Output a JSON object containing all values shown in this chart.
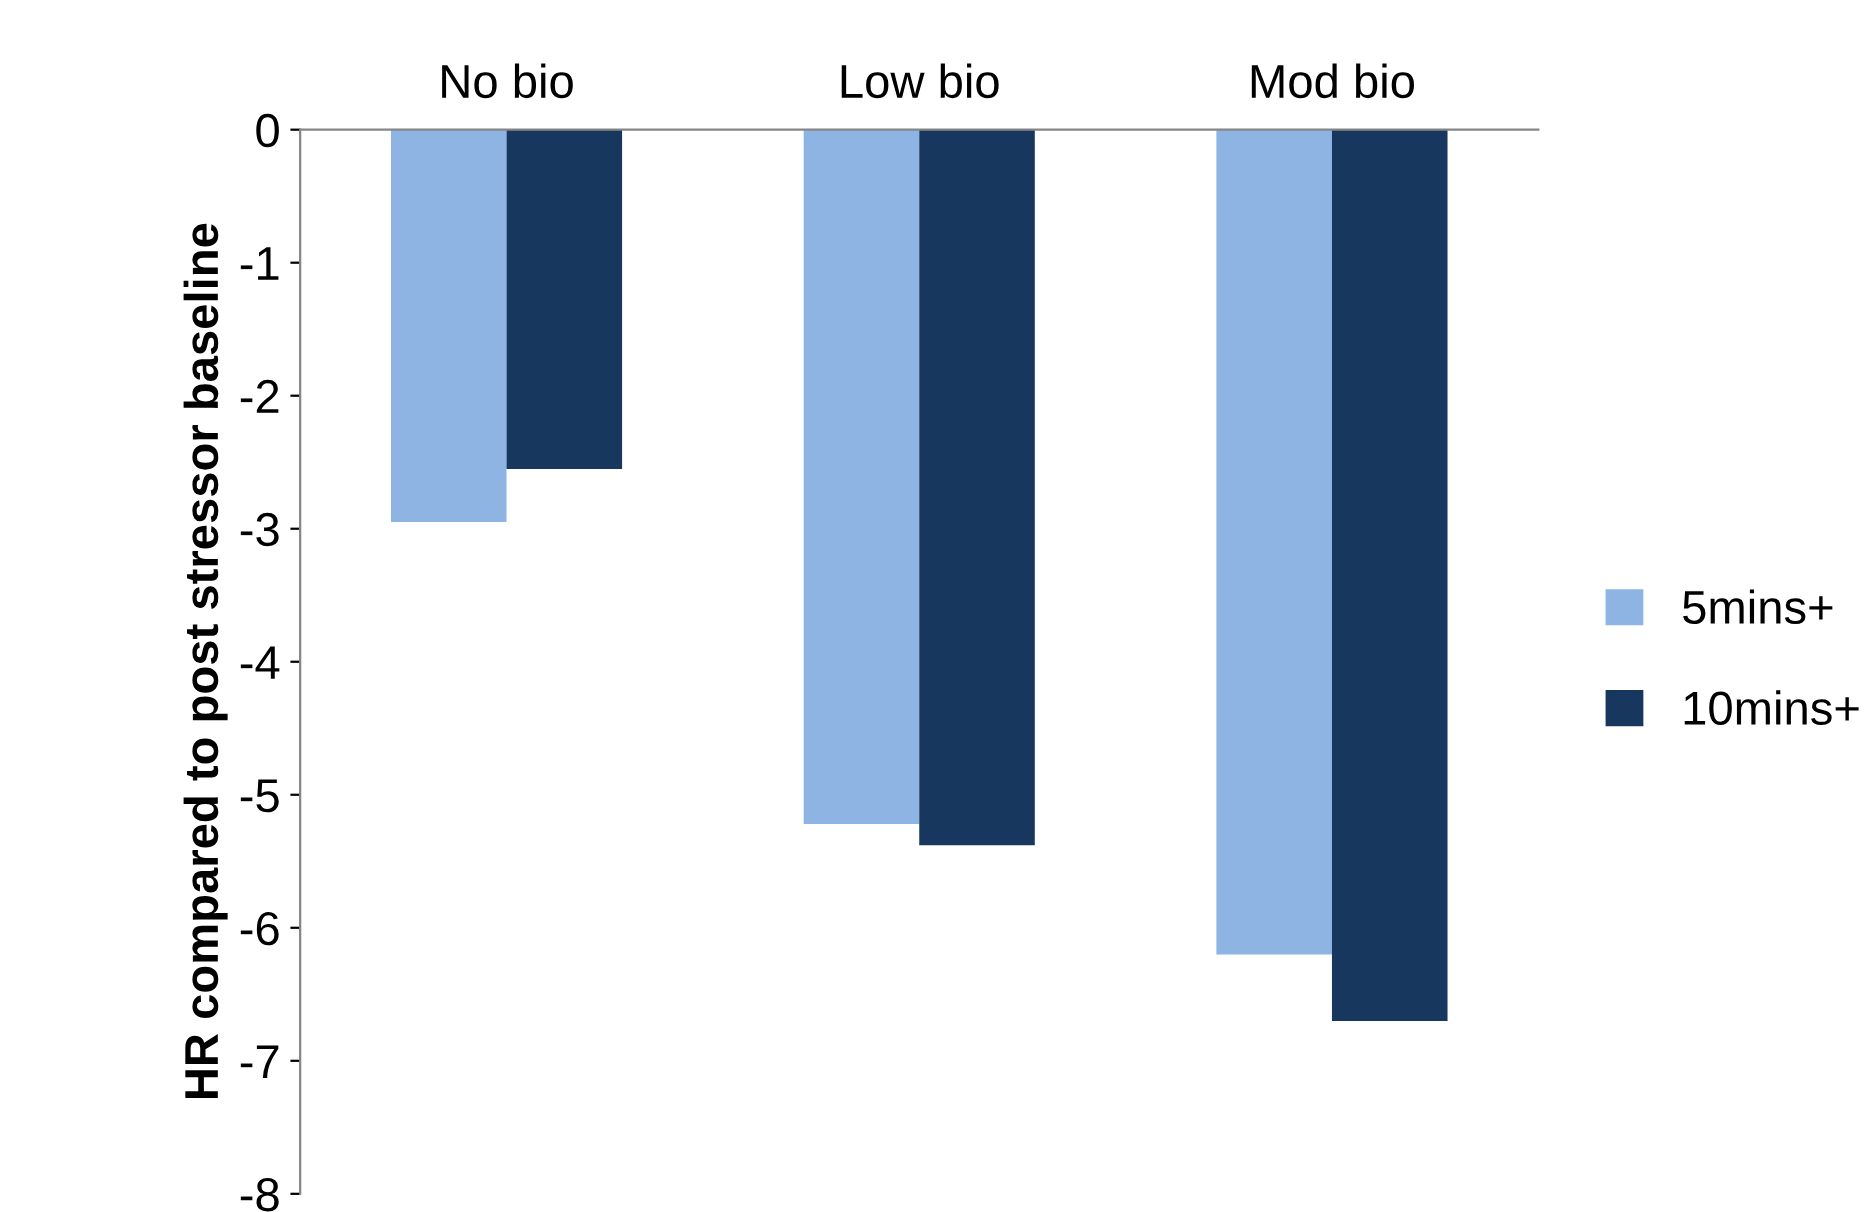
{
  "chart_data": {
    "type": "bar",
    "ylabel": "HR compared to post stressor baseline",
    "categories": [
      "No bio",
      "Low bio",
      "Mod bio"
    ],
    "series": [
      {
        "name": "5mins+",
        "color": "#8eb4e3",
        "values": [
          -2.95,
          -5.22,
          -6.2
        ]
      },
      {
        "name": "10mins+",
        "color": "#17375e",
        "values": [
          -2.55,
          -5.38,
          -6.7
        ]
      }
    ],
    "ylim": [
      -8,
      0
    ],
    "yticks": [
      -8,
      -7,
      -6,
      -5,
      -4,
      -3,
      -2,
      -1,
      0
    ],
    "grid": false,
    "legend": "right"
  }
}
